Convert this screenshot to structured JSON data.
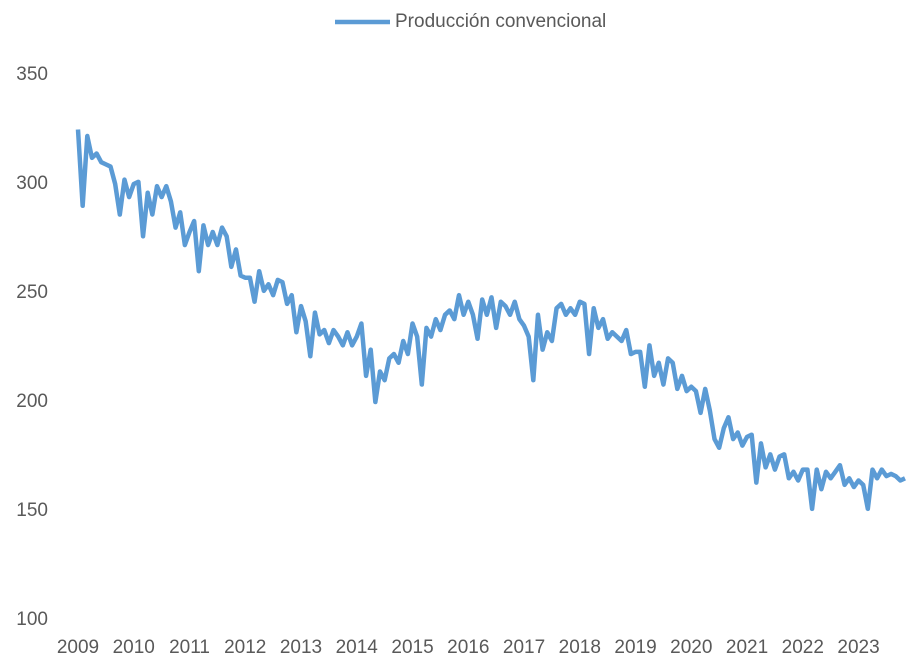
{
  "chart_data": {
    "type": "line",
    "categories": [
      "2009",
      null,
      null,
      null,
      null,
      null,
      null,
      null,
      null,
      null,
      null,
      null,
      "2010",
      null,
      null,
      null,
      null,
      null,
      null,
      null,
      null,
      null,
      null,
      null,
      "2011",
      null,
      null,
      null,
      null,
      null,
      null,
      null,
      null,
      null,
      null,
      null,
      "2012",
      null,
      null,
      null,
      null,
      null,
      null,
      null,
      null,
      null,
      null,
      null,
      "2013",
      null,
      null,
      null,
      null,
      null,
      null,
      null,
      null,
      null,
      null,
      null,
      "2014",
      null,
      null,
      null,
      null,
      null,
      null,
      null,
      null,
      null,
      null,
      null,
      "2015",
      null,
      null,
      null,
      null,
      null,
      null,
      null,
      null,
      null,
      null,
      null,
      "2016",
      null,
      null,
      null,
      null,
      null,
      null,
      null,
      null,
      null,
      null,
      null,
      "2017",
      null,
      null,
      null,
      null,
      null,
      null,
      null,
      null,
      null,
      null,
      null,
      "2018",
      null,
      null,
      null,
      null,
      null,
      null,
      null,
      null,
      null,
      null,
      null,
      "2019",
      null,
      null,
      null,
      null,
      null,
      null,
      null,
      null,
      null,
      null,
      null,
      "2020",
      null,
      null,
      null,
      null,
      null,
      null,
      null,
      null,
      null,
      null,
      null,
      "2021",
      null,
      null,
      null,
      null,
      null,
      null,
      null,
      null,
      null,
      null,
      null,
      "2022",
      null,
      null,
      null,
      null,
      null,
      null,
      null,
      null,
      null,
      null,
      null,
      "2023",
      null,
      null,
      null,
      null,
      null,
      null,
      null,
      null,
      null,
      null
    ],
    "series": [
      {
        "name": "Producción convencional",
        "color": "#5b9bd5",
        "values": [
          325,
          290,
          322,
          312,
          314,
          310,
          309,
          308,
          300,
          286,
          302,
          294,
          300,
          301,
          276,
          296,
          286,
          299,
          294,
          299,
          292,
          280,
          287,
          272,
          278,
          283,
          260,
          281,
          272,
          278,
          272,
          280,
          276,
          262,
          270,
          258,
          257,
          257,
          246,
          260,
          251,
          254,
          249,
          256,
          255,
          245,
          249,
          232,
          244,
          237,
          221,
          241,
          231,
          233,
          227,
          233,
          230,
          226,
          232,
          226,
          230,
          236,
          212,
          224,
          200,
          214,
          210,
          220,
          222,
          218,
          228,
          222,
          236,
          230,
          208,
          234,
          230,
          238,
          233,
          240,
          242,
          238,
          249,
          240,
          246,
          240,
          229,
          247,
          240,
          248,
          234,
          246,
          244,
          240,
          246,
          238,
          235,
          230,
          210,
          240,
          224,
          232,
          228,
          243,
          245,
          240,
          243,
          240,
          246,
          245,
          222,
          243,
          234,
          238,
          229,
          232,
          230,
          228,
          233,
          222,
          223,
          223,
          207,
          226,
          212,
          218,
          208,
          220,
          218,
          206,
          212,
          205,
          207,
          205,
          195,
          206,
          196,
          183,
          179,
          188,
          193,
          183,
          186,
          180,
          184,
          185,
          163,
          181,
          170,
          176,
          169,
          175,
          176,
          165,
          168,
          164,
          169,
          169,
          151,
          169,
          160,
          168,
          165,
          168,
          171,
          162,
          165,
          161,
          164,
          162,
          151,
          169,
          165,
          169,
          166,
          167,
          166,
          164,
          165
        ]
      }
    ],
    "ylim": [
      100,
      350
    ],
    "yticks": [
      100,
      150,
      200,
      250,
      300,
      350
    ],
    "legend": "top"
  }
}
